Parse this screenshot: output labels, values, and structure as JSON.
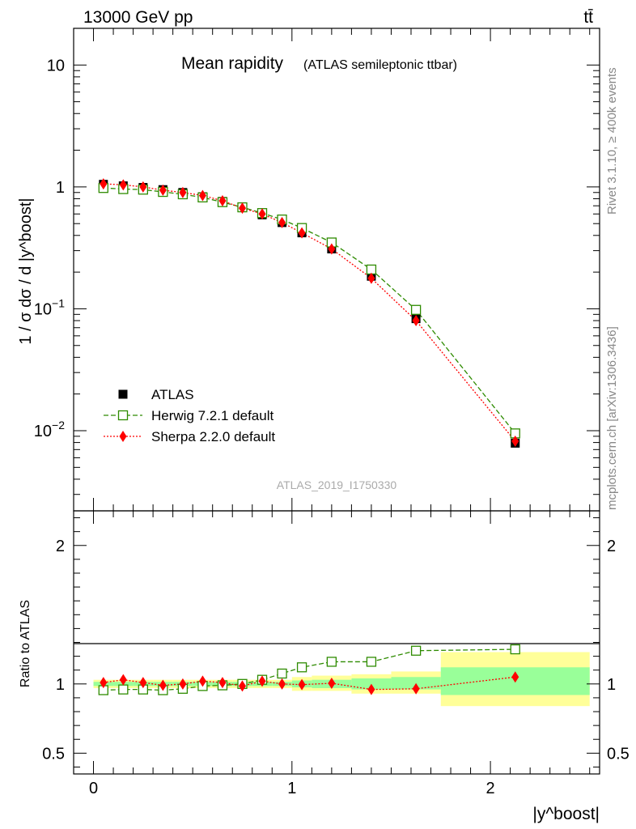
{
  "header": {
    "left": "13000 GeV pp",
    "right": "tt̄"
  },
  "side_labels": {
    "rivet": "Rivet 3.1.10, ≥ 400k events",
    "mcplots": "mcplots.cern.ch [arXiv:1306.3436]"
  },
  "analysis_id": "ATLAS_2019_I1750330",
  "colors": {
    "atlas": "#000000",
    "herwig": "#2e8b00",
    "sherpa": "#ff0000",
    "band_inner": "#99ff99",
    "band_outer": "#ffff99"
  },
  "chart_data": [
    {
      "type": "scatter",
      "title": "Mean rapidity",
      "subtitle": "(ATLAS semileptonic ttbar)",
      "ylabel": "1 / σ dσ / d |y^boost|",
      "yscale": "log",
      "ylim": [
        0.0022,
        20
      ],
      "xlim": [
        -0.1,
        2.55
      ],
      "y_ticks": [
        {
          "value": 0.01,
          "base": "10",
          "exp": "−2"
        },
        {
          "value": 0.1,
          "base": "10",
          "exp": "−1"
        },
        {
          "value": 1,
          "base": "1",
          "exp": ""
        },
        {
          "value": 10,
          "base": "10",
          "exp": ""
        }
      ],
      "legend_position": "lower-left",
      "x_edges": [
        0.0,
        0.1,
        0.2,
        0.3,
        0.4,
        0.5,
        0.6,
        0.7,
        0.8,
        0.9,
        1.0,
        1.1,
        1.3,
        1.5,
        1.75,
        2.5
      ],
      "series": [
        {
          "name": "ATLAS",
          "x": [
            0.05,
            0.15,
            0.25,
            0.35,
            0.45,
            0.55,
            0.65,
            0.75,
            0.85,
            0.95,
            1.05,
            1.2,
            1.4,
            1.625,
            2.125
          ],
          "values": [
            1.05,
            1.02,
            0.99,
            0.95,
            0.9,
            0.83,
            0.76,
            0.68,
            0.59,
            0.51,
            0.42,
            0.31,
            0.185,
            0.083,
            0.0079
          ]
        },
        {
          "name": "Herwig 7.2.1 default",
          "x": [
            0.05,
            0.15,
            0.25,
            0.35,
            0.45,
            0.55,
            0.65,
            0.75,
            0.85,
            0.95,
            1.05,
            1.2,
            1.4,
            1.625,
            2.125
          ],
          "values": [
            0.98,
            0.96,
            0.95,
            0.91,
            0.87,
            0.82,
            0.75,
            0.68,
            0.61,
            0.54,
            0.46,
            0.35,
            0.21,
            0.098,
            0.0095
          ]
        },
        {
          "name": "Sherpa 2.2.0 default",
          "x": [
            0.05,
            0.15,
            0.25,
            0.35,
            0.45,
            0.55,
            0.65,
            0.75,
            0.85,
            0.95,
            1.05,
            1.2,
            1.4,
            1.625,
            2.125
          ],
          "values": [
            1.06,
            1.04,
            1.0,
            0.94,
            0.9,
            0.85,
            0.77,
            0.67,
            0.6,
            0.51,
            0.42,
            0.31,
            0.178,
            0.08,
            0.0082
          ]
        }
      ]
    },
    {
      "type": "scatter",
      "ylabel": "Ratio to ATLAS",
      "xlabel": "|y^boost|",
      "ylim": [
        0.35,
        2.25
      ],
      "xlim": [
        -0.1,
        2.55
      ],
      "y_ticks": [
        0.5,
        1,
        2
      ],
      "y_tick_labels": [
        "0.5",
        "1",
        "2"
      ],
      "x_ticks": [
        0,
        1,
        2
      ],
      "x_tick_labels": [
        "0",
        "1",
        "2"
      ],
      "bands": [
        {
          "x0": 0.0,
          "x1": 0.1,
          "inner": [
            0.985,
            1.015
          ],
          "outer": [
            0.97,
            1.03
          ]
        },
        {
          "x0": 0.1,
          "x1": 0.2,
          "inner": [
            0.985,
            1.015
          ],
          "outer": [
            0.97,
            1.03
          ]
        },
        {
          "x0": 0.2,
          "x1": 0.3,
          "inner": [
            0.985,
            1.015
          ],
          "outer": [
            0.97,
            1.03
          ]
        },
        {
          "x0": 0.3,
          "x1": 0.4,
          "inner": [
            0.985,
            1.015
          ],
          "outer": [
            0.97,
            1.03
          ]
        },
        {
          "x0": 0.4,
          "x1": 0.5,
          "inner": [
            0.985,
            1.015
          ],
          "outer": [
            0.97,
            1.03
          ]
        },
        {
          "x0": 0.5,
          "x1": 0.6,
          "inner": [
            0.985,
            1.015
          ],
          "outer": [
            0.97,
            1.03
          ]
        },
        {
          "x0": 0.6,
          "x1": 0.7,
          "inner": [
            0.985,
            1.015
          ],
          "outer": [
            0.97,
            1.03
          ]
        },
        {
          "x0": 0.7,
          "x1": 0.8,
          "inner": [
            0.985,
            1.015
          ],
          "outer": [
            0.97,
            1.03
          ]
        },
        {
          "x0": 0.8,
          "x1": 0.9,
          "inner": [
            0.985,
            1.015
          ],
          "outer": [
            0.97,
            1.03
          ]
        },
        {
          "x0": 0.9,
          "x1": 1.0,
          "inner": [
            0.985,
            1.015
          ],
          "outer": [
            0.97,
            1.03
          ]
        },
        {
          "x0": 1.0,
          "x1": 1.1,
          "inner": [
            0.975,
            1.025
          ],
          "outer": [
            0.95,
            1.05
          ]
        },
        {
          "x0": 1.1,
          "x1": 1.3,
          "inner": [
            0.97,
            1.03
          ],
          "outer": [
            0.95,
            1.06
          ]
        },
        {
          "x0": 1.3,
          "x1": 1.5,
          "inner": [
            0.96,
            1.04
          ],
          "outer": [
            0.93,
            1.07
          ]
        },
        {
          "x0": 1.5,
          "x1": 1.75,
          "inner": [
            0.96,
            1.05
          ],
          "outer": [
            0.93,
            1.09
          ]
        },
        {
          "x0": 1.75,
          "x1": 2.5,
          "inner": [
            0.92,
            1.12
          ],
          "outer": [
            0.84,
            1.23
          ]
        }
      ],
      "series": [
        {
          "name": "Herwig 7.2.1 default",
          "x": [
            0.05,
            0.15,
            0.25,
            0.35,
            0.45,
            0.55,
            0.65,
            0.75,
            0.85,
            0.95,
            1.05,
            1.2,
            1.4,
            1.625,
            2.125
          ],
          "values": [
            0.955,
            0.96,
            0.96,
            0.955,
            0.965,
            0.985,
            0.99,
            1.0,
            1.03,
            1.075,
            1.12,
            1.16,
            1.16,
            1.24,
            1.25
          ]
        },
        {
          "name": "Sherpa 2.2.0 default",
          "x": [
            0.05,
            0.15,
            0.25,
            0.35,
            0.45,
            0.55,
            0.65,
            0.75,
            0.85,
            0.95,
            1.05,
            1.2,
            1.4,
            1.625,
            2.125
          ],
          "values": [
            1.01,
            1.03,
            1.01,
            0.99,
            1.0,
            1.02,
            1.01,
            0.985,
            1.02,
            1.0,
            0.995,
            1.005,
            0.96,
            0.965,
            1.05
          ]
        }
      ]
    }
  ]
}
